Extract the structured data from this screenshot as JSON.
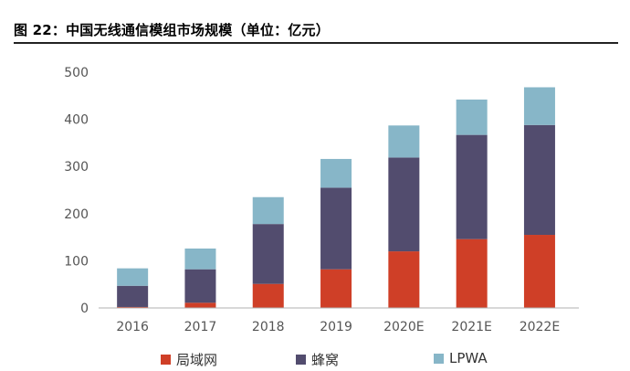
{
  "figure_title": "图 22：中国无线通信模组市场规模（单位：亿元）",
  "chart_data": {
    "type": "bar",
    "stacked": true,
    "title": "中国无线通信模组市场规模（单位：亿元）",
    "categories": [
      "2016",
      "2017",
      "2018",
      "2019",
      "2020E",
      "2021E",
      "2022E"
    ],
    "series": [
      {
        "name": "局域网",
        "color": "#cf3f27",
        "values": [
          2,
          11,
          51,
          82,
          120,
          146,
          155
        ]
      },
      {
        "name": "蜂窝",
        "color": "#524c6e",
        "values": [
          45,
          71,
          127,
          173,
          199,
          221,
          233
        ]
      },
      {
        "name": "LPWA",
        "color": "#87b6c8",
        "values": [
          37,
          44,
          57,
          61,
          68,
          75,
          80
        ]
      }
    ],
    "y_ticks": [
      "0",
      "100",
      "200",
      "300",
      "400",
      "500"
    ],
    "ylim": [
      0,
      500
    ],
    "xlabel": "",
    "ylabel": "",
    "grid": false,
    "legend": "bottom"
  }
}
